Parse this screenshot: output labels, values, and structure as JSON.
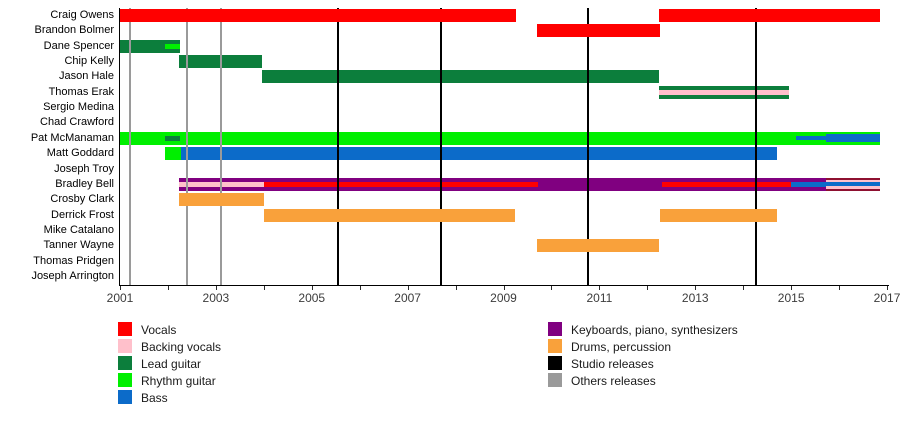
{
  "chart_data": {
    "type": "timeline",
    "title": "",
    "x_axis": {
      "min": 2001,
      "max": 2017,
      "tick_interval": 1,
      "label_interval": 2,
      "tick_labels": [
        "2001",
        "2003",
        "2005",
        "2007",
        "2009",
        "2011",
        "2013",
        "2015",
        "2017"
      ]
    },
    "colors": {
      "vocals": "#ff0000",
      "backing_vocals": "#ffc0cb",
      "lead_guitar": "#0c7e3c",
      "rhythm_guitar": "#00ef00",
      "bass": "#0c6bc9",
      "keyboards": "#800080",
      "drums": "#f9a13b",
      "studio": "#000000",
      "others": "#9a9a9a",
      "composite_edge": "#8e1030",
      "axis": "#000000"
    },
    "members": [
      {
        "name": "Craig Owens",
        "bars": [
          {
            "role": "vocals",
            "start": 2001.0,
            "end": 2009.26,
            "layer": "front"
          },
          {
            "role": "vocals",
            "start": 2012.25,
            "end": 2016.85,
            "layer": "front"
          }
        ]
      },
      {
        "name": "Brandon Bolmer",
        "bars": [
          {
            "role": "vocals",
            "start": 2009.7,
            "end": 2012.27,
            "layer": "front"
          }
        ]
      },
      {
        "name": "Dane Spencer",
        "bars": [
          {
            "role": "lead_guitar",
            "start": 2001.0,
            "end": 2002.25,
            "layer": "back",
            "stripes": [
              {
                "role": "rhythm_guitar",
                "start": 2001.94,
                "end": 2002.25,
                "size": "normal"
              }
            ]
          }
        ]
      },
      {
        "name": "Chip Kelly",
        "bars": [
          {
            "role": "lead_guitar",
            "start": 2002.23,
            "end": 2003.96,
            "layer": "back"
          }
        ]
      },
      {
        "name": "Jason Hale",
        "bars": [
          {
            "role": "lead_guitar",
            "start": 2003.96,
            "end": 2012.25,
            "layer": "back"
          }
        ]
      },
      {
        "name": "Thomas Erak",
        "bars": [
          {
            "role": "lead_guitar",
            "start": 2012.25,
            "end": 2014.95,
            "layer": "back",
            "stripes": [
              {
                "role": "backing_vocals",
                "start": 2012.25,
                "end": 2014.95,
                "size": "normal"
              }
            ]
          }
        ]
      },
      {
        "name": "Sergio Medina",
        "bars": []
      },
      {
        "name": "Chad Crawford",
        "bars": []
      },
      {
        "name": "Pat McManaman",
        "bars": [
          {
            "role": "rhythm_guitar",
            "start": 2001.0,
            "end": 2016.85,
            "layer": "back",
            "stripes": [
              {
                "role": "lead_guitar",
                "start": 2001.94,
                "end": 2002.25,
                "size": "normal"
              },
              {
                "role": "bass",
                "start": 2015.1,
                "end": 2015.72,
                "size": "thin"
              },
              {
                "role": "bass",
                "start": 2015.72,
                "end": 2016.85,
                "size": "thick"
              }
            ]
          }
        ]
      },
      {
        "name": "Matt Goddard",
        "bars": [
          {
            "role": "rhythm_guitar",
            "start": 2001.94,
            "end": 2002.28,
            "layer": "back"
          },
          {
            "role": "bass",
            "start": 2002.28,
            "end": 2014.7,
            "layer": "back"
          }
        ]
      },
      {
        "name": "Joseph Troy",
        "bars": []
      },
      {
        "name": "Bradley Bell",
        "bars": [
          {
            "role": "keyboards",
            "start": 2002.23,
            "end": 2015.72,
            "layer": "back",
            "stripes": [
              {
                "role": "backing_vocals",
                "start": 2002.23,
                "end": 2004.0,
                "size": "normal"
              },
              {
                "role": "vocals",
                "start": 2004.0,
                "end": 2009.72,
                "size": "normal"
              },
              {
                "role": "vocals",
                "start": 2012.3,
                "end": 2015.0,
                "size": "normal"
              },
              {
                "role": "bass",
                "start": 2015.0,
                "end": 2015.72,
                "size": "normal"
              }
            ]
          },
          {
            "role": "composite",
            "start": 2015.72,
            "end": 2016.85,
            "layer": "back",
            "bg": "backing_vocals",
            "stripe": "bass",
            "edge": "composite_edge"
          }
        ]
      },
      {
        "name": "Crosby Clark",
        "bars": [
          {
            "role": "drums",
            "start": 2002.23,
            "end": 2004.0,
            "layer": "front"
          }
        ]
      },
      {
        "name": "Derrick Frost",
        "bars": [
          {
            "role": "drums",
            "start": 2004.0,
            "end": 2009.24,
            "layer": "front"
          },
          {
            "role": "drums",
            "start": 2012.26,
            "end": 2014.7,
            "layer": "front"
          }
        ]
      },
      {
        "name": "Mike Catalano",
        "bars": []
      },
      {
        "name": "Tanner Wayne",
        "bars": [
          {
            "role": "drums",
            "start": 2009.7,
            "end": 2012.25,
            "layer": "front"
          }
        ]
      },
      {
        "name": "Thomas Pridgen",
        "bars": []
      },
      {
        "name": "Joseph Arrington",
        "bars": []
      }
    ],
    "releases": {
      "studio": [
        2005.55,
        2007.7,
        2010.77,
        2014.27
      ],
      "others": [
        2001.2,
        2002.4,
        2003.1
      ]
    },
    "legend": {
      "left_column": [
        {
          "label": "Vocals",
          "role": "vocals"
        },
        {
          "label": "Backing vocals",
          "role": "backing_vocals"
        },
        {
          "label": "Lead guitar",
          "role": "lead_guitar"
        },
        {
          "label": "Rhythm guitar",
          "role": "rhythm_guitar"
        },
        {
          "label": "Bass",
          "role": "bass"
        }
      ],
      "right_column": [
        {
          "label": "Keyboards, piano, synthesizers",
          "role": "keyboards"
        },
        {
          "label": "Drums, percussion",
          "role": "drums"
        },
        {
          "label": "Studio releases",
          "role": "studio"
        },
        {
          "label": "Others releases",
          "role": "others"
        }
      ]
    }
  }
}
